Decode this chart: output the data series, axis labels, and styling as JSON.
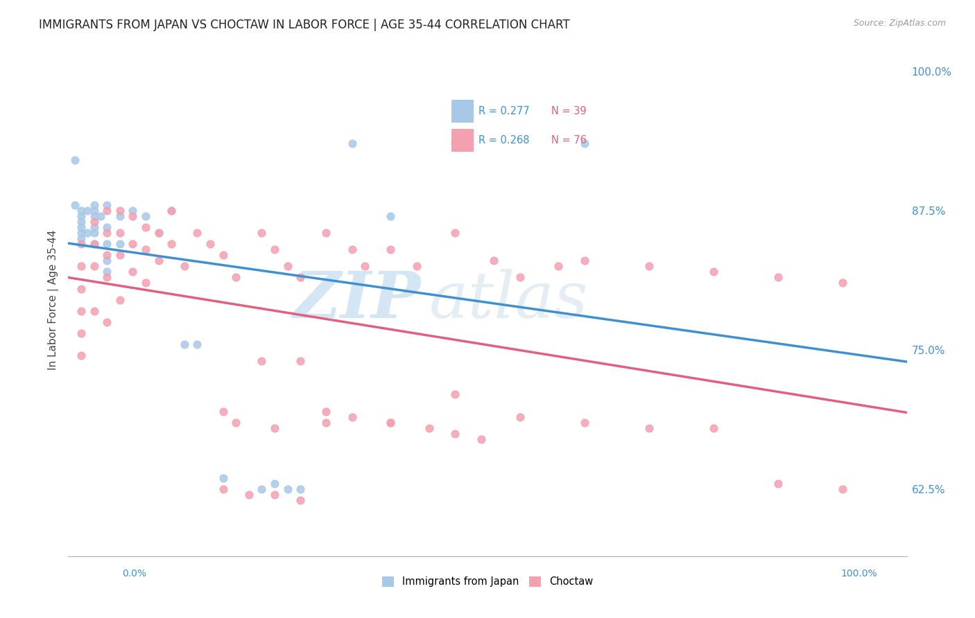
{
  "title": "IMMIGRANTS FROM JAPAN VS CHOCTAW IN LABOR FORCE | AGE 35-44 CORRELATION CHART",
  "source": "Source: ZipAtlas.com",
  "ylabel": "In Labor Force | Age 35-44",
  "xmin": 0.0,
  "xmax": 0.065,
  "ymin": 0.565,
  "ymax": 1.025,
  "ytick_labels_right": [
    "62.5%",
    "75.0%",
    "87.5%",
    "100.0%"
  ],
  "ytick_values_right": [
    0.625,
    0.75,
    0.875,
    1.0
  ],
  "xtick_labels_bottom": [
    "0.0%",
    "100.0%"
  ],
  "xtick_values_bottom": [
    0.0,
    1.0
  ],
  "legend_r1": "R = 0.277",
  "legend_n1": "N = 39",
  "legend_r2": "R = 0.268",
  "legend_n2": "N = 76",
  "color_japan": "#a8c8e8",
  "color_choctaw": "#f4a0b0",
  "color_japan_line": "#4090d0",
  "color_choctaw_line": "#e06080",
  "japan_x": [
    0.0005,
    0.0005,
    0.001,
    0.001,
    0.001,
    0.001,
    0.001,
    0.001,
    0.0015,
    0.0015,
    0.002,
    0.002,
    0.002,
    0.002,
    0.002,
    0.002,
    0.0025,
    0.003,
    0.003,
    0.003,
    0.003,
    0.003,
    0.004,
    0.004,
    0.005,
    0.006,
    0.007,
    0.008,
    0.009,
    0.01,
    0.012,
    0.015,
    0.018,
    0.022,
    0.025,
    0.03,
    0.04,
    0.016,
    0.017
  ],
  "japan_y": [
    0.88,
    0.92,
    0.875,
    0.87,
    0.865,
    0.86,
    0.855,
    0.85,
    0.875,
    0.855,
    0.88,
    0.875,
    0.87,
    0.86,
    0.855,
    0.845,
    0.87,
    0.88,
    0.86,
    0.845,
    0.83,
    0.82,
    0.87,
    0.845,
    0.875,
    0.87,
    0.855,
    0.875,
    0.755,
    0.755,
    0.635,
    0.625,
    0.625,
    0.935,
    0.87,
    0.935,
    0.935,
    0.63,
    0.625
  ],
  "choctaw_x": [
    0.001,
    0.001,
    0.001,
    0.001,
    0.001,
    0.001,
    0.002,
    0.002,
    0.002,
    0.002,
    0.003,
    0.003,
    0.003,
    0.003,
    0.003,
    0.004,
    0.004,
    0.004,
    0.004,
    0.005,
    0.005,
    0.005,
    0.006,
    0.006,
    0.006,
    0.007,
    0.007,
    0.008,
    0.008,
    0.009,
    0.01,
    0.011,
    0.012,
    0.013,
    0.015,
    0.016,
    0.017,
    0.018,
    0.02,
    0.022,
    0.023,
    0.025,
    0.027,
    0.03,
    0.033,
    0.035,
    0.038,
    0.04,
    0.045,
    0.05,
    0.055,
    0.06,
    0.013,
    0.016,
    0.02,
    0.022,
    0.025,
    0.028,
    0.03,
    0.032,
    0.018,
    0.012,
    0.015,
    0.02,
    0.025,
    0.03,
    0.035,
    0.04,
    0.045,
    0.05,
    0.055,
    0.06,
    0.012,
    0.014,
    0.016,
    0.018
  ],
  "choctaw_y": [
    0.845,
    0.825,
    0.805,
    0.785,
    0.765,
    0.745,
    0.865,
    0.845,
    0.825,
    0.785,
    0.875,
    0.855,
    0.835,
    0.815,
    0.775,
    0.875,
    0.855,
    0.835,
    0.795,
    0.87,
    0.845,
    0.82,
    0.86,
    0.84,
    0.81,
    0.855,
    0.83,
    0.875,
    0.845,
    0.825,
    0.855,
    0.845,
    0.835,
    0.815,
    0.855,
    0.84,
    0.825,
    0.815,
    0.855,
    0.84,
    0.825,
    0.84,
    0.825,
    0.855,
    0.83,
    0.815,
    0.825,
    0.83,
    0.825,
    0.82,
    0.815,
    0.81,
    0.685,
    0.68,
    0.695,
    0.69,
    0.685,
    0.68,
    0.675,
    0.67,
    0.74,
    0.695,
    0.74,
    0.685,
    0.685,
    0.71,
    0.69,
    0.685,
    0.68,
    0.68,
    0.63,
    0.625,
    0.625,
    0.62,
    0.62,
    0.615
  ],
  "watermark_zip": "ZIP",
  "watermark_atlas": "atlas",
  "background_color": "#ffffff",
  "grid_color": "#d8d8d8",
  "title_fontsize": 12,
  "axis_fontsize": 10,
  "marker_size": 60
}
